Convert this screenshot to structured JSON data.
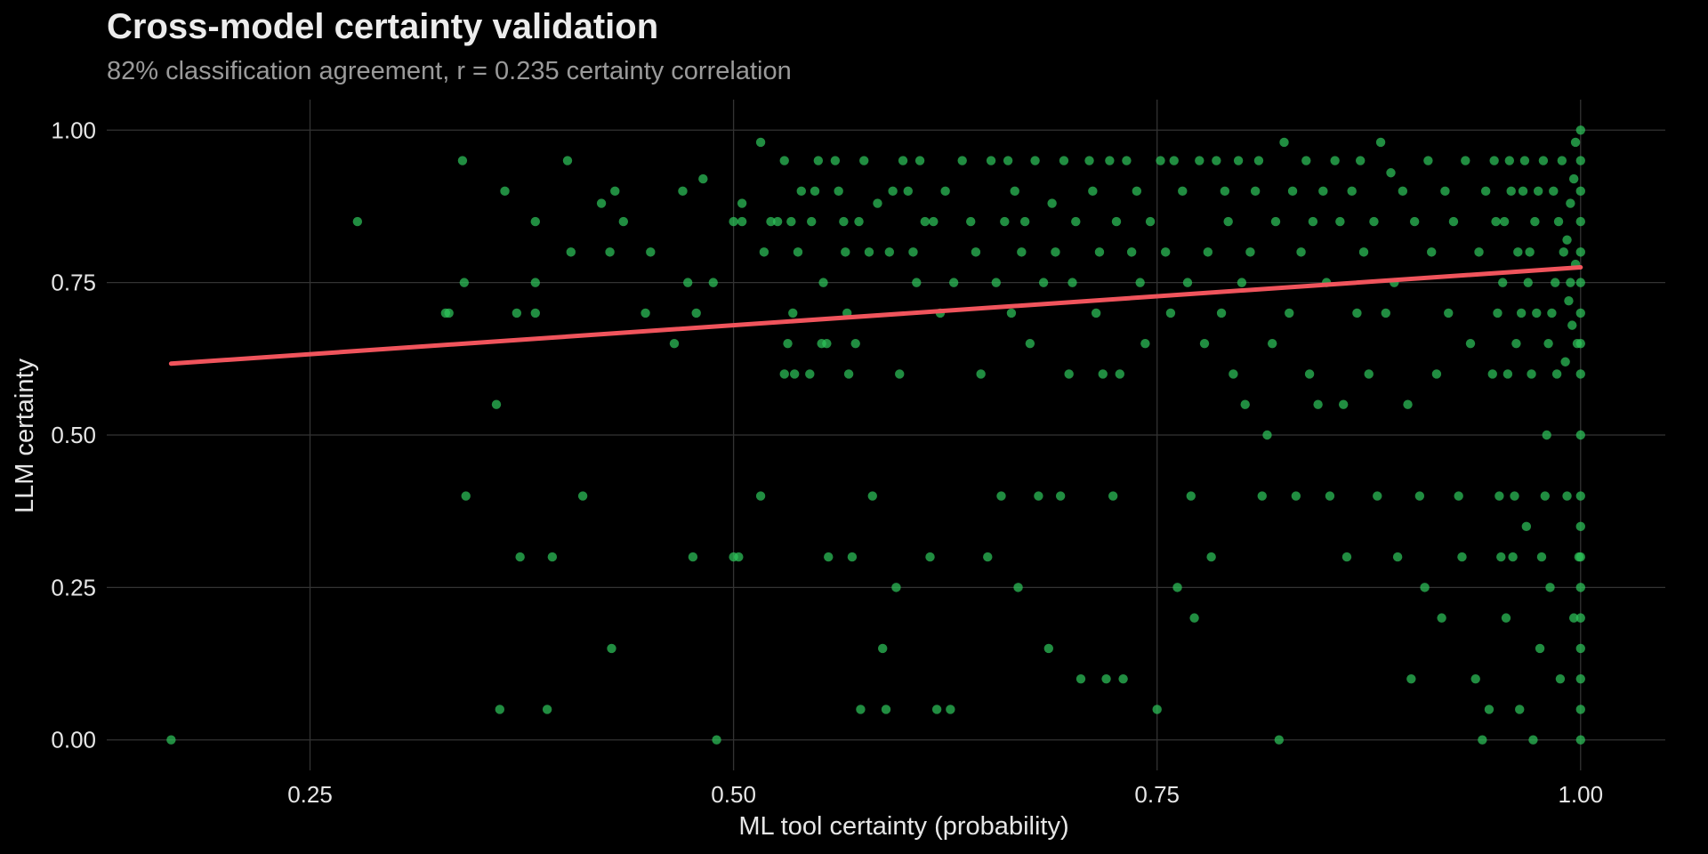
{
  "chart_data": {
    "type": "scatter",
    "title": "Cross-model certainty validation",
    "subtitle": "82% classification agreement, r = 0.235 certainty correlation",
    "xlabel": "ML tool certainty (probability)",
    "ylabel": "LLM certainty",
    "xlim": [
      0.13,
      1.05
    ],
    "ylim": [
      -0.05,
      1.05
    ],
    "x_ticks": [
      0.25,
      0.5,
      0.75,
      1.0
    ],
    "x_tick_labels": [
      "0.25",
      "0.50",
      "0.75",
      "1.00"
    ],
    "y_ticks": [
      0.0,
      0.25,
      0.5,
      0.75,
      1.0
    ],
    "y_tick_labels": [
      "0.00",
      "0.25",
      "0.50",
      "0.75",
      "1.00"
    ],
    "grid": true,
    "colors": {
      "background": "#000000",
      "points": "#2ec35a",
      "trend": "#f0545c",
      "grid": "#333333"
    },
    "trend_line": {
      "x": [
        0.168,
        1.0
      ],
      "y": [
        0.617,
        0.775
      ]
    },
    "points": [
      [
        0.168,
        0.0
      ],
      [
        0.278,
        0.85
      ],
      [
        0.33,
        0.7
      ],
      [
        0.332,
        0.7
      ],
      [
        0.34,
        0.95
      ],
      [
        0.341,
        0.75
      ],
      [
        0.342,
        0.4
      ],
      [
        0.36,
        0.55
      ],
      [
        0.362,
        0.05
      ],
      [
        0.365,
        0.9
      ],
      [
        0.372,
        0.7
      ],
      [
        0.374,
        0.3
      ],
      [
        0.383,
        0.85
      ],
      [
        0.383,
        0.75
      ],
      [
        0.383,
        0.7
      ],
      [
        0.39,
        0.05
      ],
      [
        0.393,
        0.3
      ],
      [
        0.402,
        0.95
      ],
      [
        0.404,
        0.8
      ],
      [
        0.411,
        0.4
      ],
      [
        0.422,
        0.88
      ],
      [
        0.427,
        0.8
      ],
      [
        0.428,
        0.15
      ],
      [
        0.43,
        0.9
      ],
      [
        0.435,
        0.85
      ],
      [
        0.448,
        0.7
      ],
      [
        0.451,
        0.8
      ],
      [
        0.465,
        0.65
      ],
      [
        0.47,
        0.9
      ],
      [
        0.473,
        0.75
      ],
      [
        0.476,
        0.3
      ],
      [
        0.478,
        0.7
      ],
      [
        0.482,
        0.92
      ],
      [
        0.488,
        0.75
      ],
      [
        0.49,
        0.0
      ],
      [
        0.5,
        0.85
      ],
      [
        0.5,
        0.3
      ],
      [
        0.503,
        0.3
      ],
      [
        0.505,
        0.88
      ],
      [
        0.505,
        0.85
      ],
      [
        0.516,
        0.4
      ],
      [
        0.516,
        0.98
      ],
      [
        0.518,
        0.8
      ],
      [
        0.522,
        0.85
      ],
      [
        0.526,
        0.85
      ],
      [
        0.53,
        0.6
      ],
      [
        0.53,
        0.95
      ],
      [
        0.532,
        0.65
      ],
      [
        0.534,
        0.85
      ],
      [
        0.535,
        0.7
      ],
      [
        0.536,
        0.6
      ],
      [
        0.538,
        0.8
      ],
      [
        0.54,
        0.9
      ],
      [
        0.545,
        0.6
      ],
      [
        0.546,
        0.85
      ],
      [
        0.548,
        0.9
      ],
      [
        0.55,
        0.95
      ],
      [
        0.552,
        0.65
      ],
      [
        0.553,
        0.75
      ],
      [
        0.555,
        0.65
      ],
      [
        0.556,
        0.3
      ],
      [
        0.56,
        0.95
      ],
      [
        0.562,
        0.9
      ],
      [
        0.565,
        0.85
      ],
      [
        0.566,
        0.8
      ],
      [
        0.567,
        0.7
      ],
      [
        0.568,
        0.6
      ],
      [
        0.57,
        0.3
      ],
      [
        0.572,
        0.65
      ],
      [
        0.574,
        0.85
      ],
      [
        0.575,
        0.05
      ],
      [
        0.577,
        0.95
      ],
      [
        0.58,
        0.8
      ],
      [
        0.582,
        0.4
      ],
      [
        0.585,
        0.88
      ],
      [
        0.588,
        0.15
      ],
      [
        0.59,
        0.05
      ],
      [
        0.592,
        0.8
      ],
      [
        0.594,
        0.9
      ],
      [
        0.596,
        0.25
      ],
      [
        0.598,
        0.6
      ],
      [
        0.6,
        0.95
      ],
      [
        0.603,
        0.9
      ],
      [
        0.606,
        0.8
      ],
      [
        0.608,
        0.75
      ],
      [
        0.61,
        0.95
      ],
      [
        0.613,
        0.85
      ],
      [
        0.616,
        0.3
      ],
      [
        0.618,
        0.85
      ],
      [
        0.62,
        0.05
      ],
      [
        0.622,
        0.7
      ],
      [
        0.625,
        0.9
      ],
      [
        0.628,
        0.05
      ],
      [
        0.63,
        0.75
      ],
      [
        0.635,
        0.95
      ],
      [
        0.64,
        0.85
      ],
      [
        0.643,
        0.8
      ],
      [
        0.646,
        0.6
      ],
      [
        0.65,
        0.3
      ],
      [
        0.652,
        0.95
      ],
      [
        0.655,
        0.75
      ],
      [
        0.658,
        0.4
      ],
      [
        0.66,
        0.85
      ],
      [
        0.662,
        0.95
      ],
      [
        0.664,
        0.7
      ],
      [
        0.666,
        0.9
      ],
      [
        0.668,
        0.25
      ],
      [
        0.67,
        0.8
      ],
      [
        0.672,
        0.85
      ],
      [
        0.675,
        0.65
      ],
      [
        0.678,
        0.95
      ],
      [
        0.68,
        0.4
      ],
      [
        0.683,
        0.75
      ],
      [
        0.686,
        0.15
      ],
      [
        0.688,
        0.88
      ],
      [
        0.69,
        0.8
      ],
      [
        0.693,
        0.4
      ],
      [
        0.695,
        0.95
      ],
      [
        0.698,
        0.6
      ],
      [
        0.7,
        0.75
      ],
      [
        0.702,
        0.85
      ],
      [
        0.705,
        0.1
      ],
      [
        0.71,
        0.95
      ],
      [
        0.712,
        0.9
      ],
      [
        0.714,
        0.7
      ],
      [
        0.716,
        0.8
      ],
      [
        0.718,
        0.6
      ],
      [
        0.72,
        0.1
      ],
      [
        0.722,
        0.95
      ],
      [
        0.724,
        0.4
      ],
      [
        0.726,
        0.85
      ],
      [
        0.728,
        0.6
      ],
      [
        0.73,
        0.1
      ],
      [
        0.732,
        0.95
      ],
      [
        0.735,
        0.8
      ],
      [
        0.738,
        0.9
      ],
      [
        0.74,
        0.75
      ],
      [
        0.743,
        0.65
      ],
      [
        0.746,
        0.85
      ],
      [
        0.75,
        0.05
      ],
      [
        0.752,
        0.95
      ],
      [
        0.755,
        0.8
      ],
      [
        0.758,
        0.7
      ],
      [
        0.76,
        0.95
      ],
      [
        0.762,
        0.25
      ],
      [
        0.765,
        0.9
      ],
      [
        0.768,
        0.75
      ],
      [
        0.77,
        0.4
      ],
      [
        0.772,
        0.2
      ],
      [
        0.775,
        0.95
      ],
      [
        0.778,
        0.65
      ],
      [
        0.78,
        0.8
      ],
      [
        0.782,
        0.3
      ],
      [
        0.785,
        0.95
      ],
      [
        0.788,
        0.7
      ],
      [
        0.79,
        0.9
      ],
      [
        0.792,
        0.85
      ],
      [
        0.795,
        0.6
      ],
      [
        0.798,
        0.95
      ],
      [
        0.8,
        0.75
      ],
      [
        0.802,
        0.55
      ],
      [
        0.805,
        0.8
      ],
      [
        0.808,
        0.9
      ],
      [
        0.81,
        0.95
      ],
      [
        0.812,
        0.4
      ],
      [
        0.815,
        0.5
      ],
      [
        0.818,
        0.65
      ],
      [
        0.82,
        0.85
      ],
      [
        0.822,
        0.0
      ],
      [
        0.825,
        0.98
      ],
      [
        0.828,
        0.7
      ],
      [
        0.83,
        0.9
      ],
      [
        0.832,
        0.4
      ],
      [
        0.835,
        0.8
      ],
      [
        0.838,
        0.95
      ],
      [
        0.84,
        0.6
      ],
      [
        0.842,
        0.85
      ],
      [
        0.845,
        0.55
      ],
      [
        0.848,
        0.9
      ],
      [
        0.85,
        0.75
      ],
      [
        0.852,
        0.4
      ],
      [
        0.855,
        0.95
      ],
      [
        0.858,
        0.85
      ],
      [
        0.86,
        0.55
      ],
      [
        0.862,
        0.3
      ],
      [
        0.865,
        0.9
      ],
      [
        0.868,
        0.7
      ],
      [
        0.87,
        0.95
      ],
      [
        0.872,
        0.8
      ],
      [
        0.875,
        0.6
      ],
      [
        0.878,
        0.85
      ],
      [
        0.88,
        0.4
      ],
      [
        0.882,
        0.98
      ],
      [
        0.885,
        0.7
      ],
      [
        0.888,
        0.93
      ],
      [
        0.89,
        0.75
      ],
      [
        0.892,
        0.3
      ],
      [
        0.895,
        0.9
      ],
      [
        0.898,
        0.55
      ],
      [
        0.9,
        0.1
      ],
      [
        0.902,
        0.85
      ],
      [
        0.905,
        0.4
      ],
      [
        0.908,
        0.25
      ],
      [
        0.91,
        0.95
      ],
      [
        0.912,
        0.8
      ],
      [
        0.915,
        0.6
      ],
      [
        0.918,
        0.2
      ],
      [
        0.92,
        0.9
      ],
      [
        0.922,
        0.7
      ],
      [
        0.925,
        0.85
      ],
      [
        0.928,
        0.4
      ],
      [
        0.93,
        0.3
      ],
      [
        0.932,
        0.95
      ],
      [
        0.935,
        0.65
      ],
      [
        0.938,
        0.1
      ],
      [
        0.94,
        0.8
      ],
      [
        0.942,
        0.0
      ],
      [
        0.944,
        0.9
      ],
      [
        0.946,
        0.05
      ],
      [
        0.948,
        0.6
      ],
      [
        0.95,
        0.85
      ],
      [
        0.952,
        0.4
      ],
      [
        0.954,
        0.75
      ],
      [
        0.956,
        0.2
      ],
      [
        0.958,
        0.95
      ],
      [
        0.96,
        0.3
      ],
      [
        0.962,
        0.65
      ],
      [
        0.964,
        0.05
      ],
      [
        0.966,
        0.9
      ],
      [
        0.968,
        0.35
      ],
      [
        0.97,
        0.8
      ],
      [
        0.972,
        0.0
      ],
      [
        0.974,
        0.7
      ],
      [
        0.976,
        0.15
      ],
      [
        0.978,
        0.95
      ],
      [
        0.98,
        0.5
      ],
      [
        0.982,
        0.25
      ],
      [
        0.984,
        0.9
      ],
      [
        0.986,
        0.6
      ],
      [
        0.988,
        0.1
      ],
      [
        0.99,
        0.8
      ],
      [
        0.992,
        0.4
      ],
      [
        0.994,
        0.75
      ],
      [
        0.996,
        0.2
      ],
      [
        0.997,
        0.98
      ],
      [
        0.998,
        0.65
      ],
      [
        0.999,
        0.3
      ],
      [
        1.0,
        1.0
      ],
      [
        1.0,
        0.95
      ],
      [
        1.0,
        0.9
      ],
      [
        1.0,
        0.85
      ],
      [
        1.0,
        0.8
      ],
      [
        1.0,
        0.75
      ],
      [
        1.0,
        0.7
      ],
      [
        1.0,
        0.65
      ],
      [
        1.0,
        0.6
      ],
      [
        1.0,
        0.5
      ],
      [
        1.0,
        0.4
      ],
      [
        1.0,
        0.35
      ],
      [
        1.0,
        0.3
      ],
      [
        1.0,
        0.25
      ],
      [
        1.0,
        0.2
      ],
      [
        1.0,
        0.15
      ],
      [
        1.0,
        0.1
      ],
      [
        1.0,
        0.05
      ],
      [
        1.0,
        0.0
      ],
      [
        0.996,
        0.92
      ],
      [
        0.994,
        0.88
      ],
      [
        0.992,
        0.82
      ],
      [
        0.997,
        0.78
      ],
      [
        0.993,
        0.72
      ],
      [
        0.995,
        0.68
      ],
      [
        0.991,
        0.62
      ],
      [
        0.989,
        0.95
      ],
      [
        0.987,
        0.85
      ],
      [
        0.985,
        0.75
      ],
      [
        0.983,
        0.7
      ],
      [
        0.981,
        0.65
      ],
      [
        0.979,
        0.4
      ],
      [
        0.977,
        0.3
      ],
      [
        0.975,
        0.9
      ],
      [
        0.973,
        0.85
      ],
      [
        0.971,
        0.6
      ],
      [
        0.969,
        0.75
      ],
      [
        0.967,
        0.95
      ],
      [
        0.965,
        0.7
      ],
      [
        0.963,
        0.8
      ],
      [
        0.961,
        0.4
      ],
      [
        0.959,
        0.9
      ],
      [
        0.957,
        0.6
      ],
      [
        0.955,
        0.85
      ],
      [
        0.953,
        0.3
      ],
      [
        0.951,
        0.7
      ],
      [
        0.949,
        0.95
      ]
    ]
  }
}
